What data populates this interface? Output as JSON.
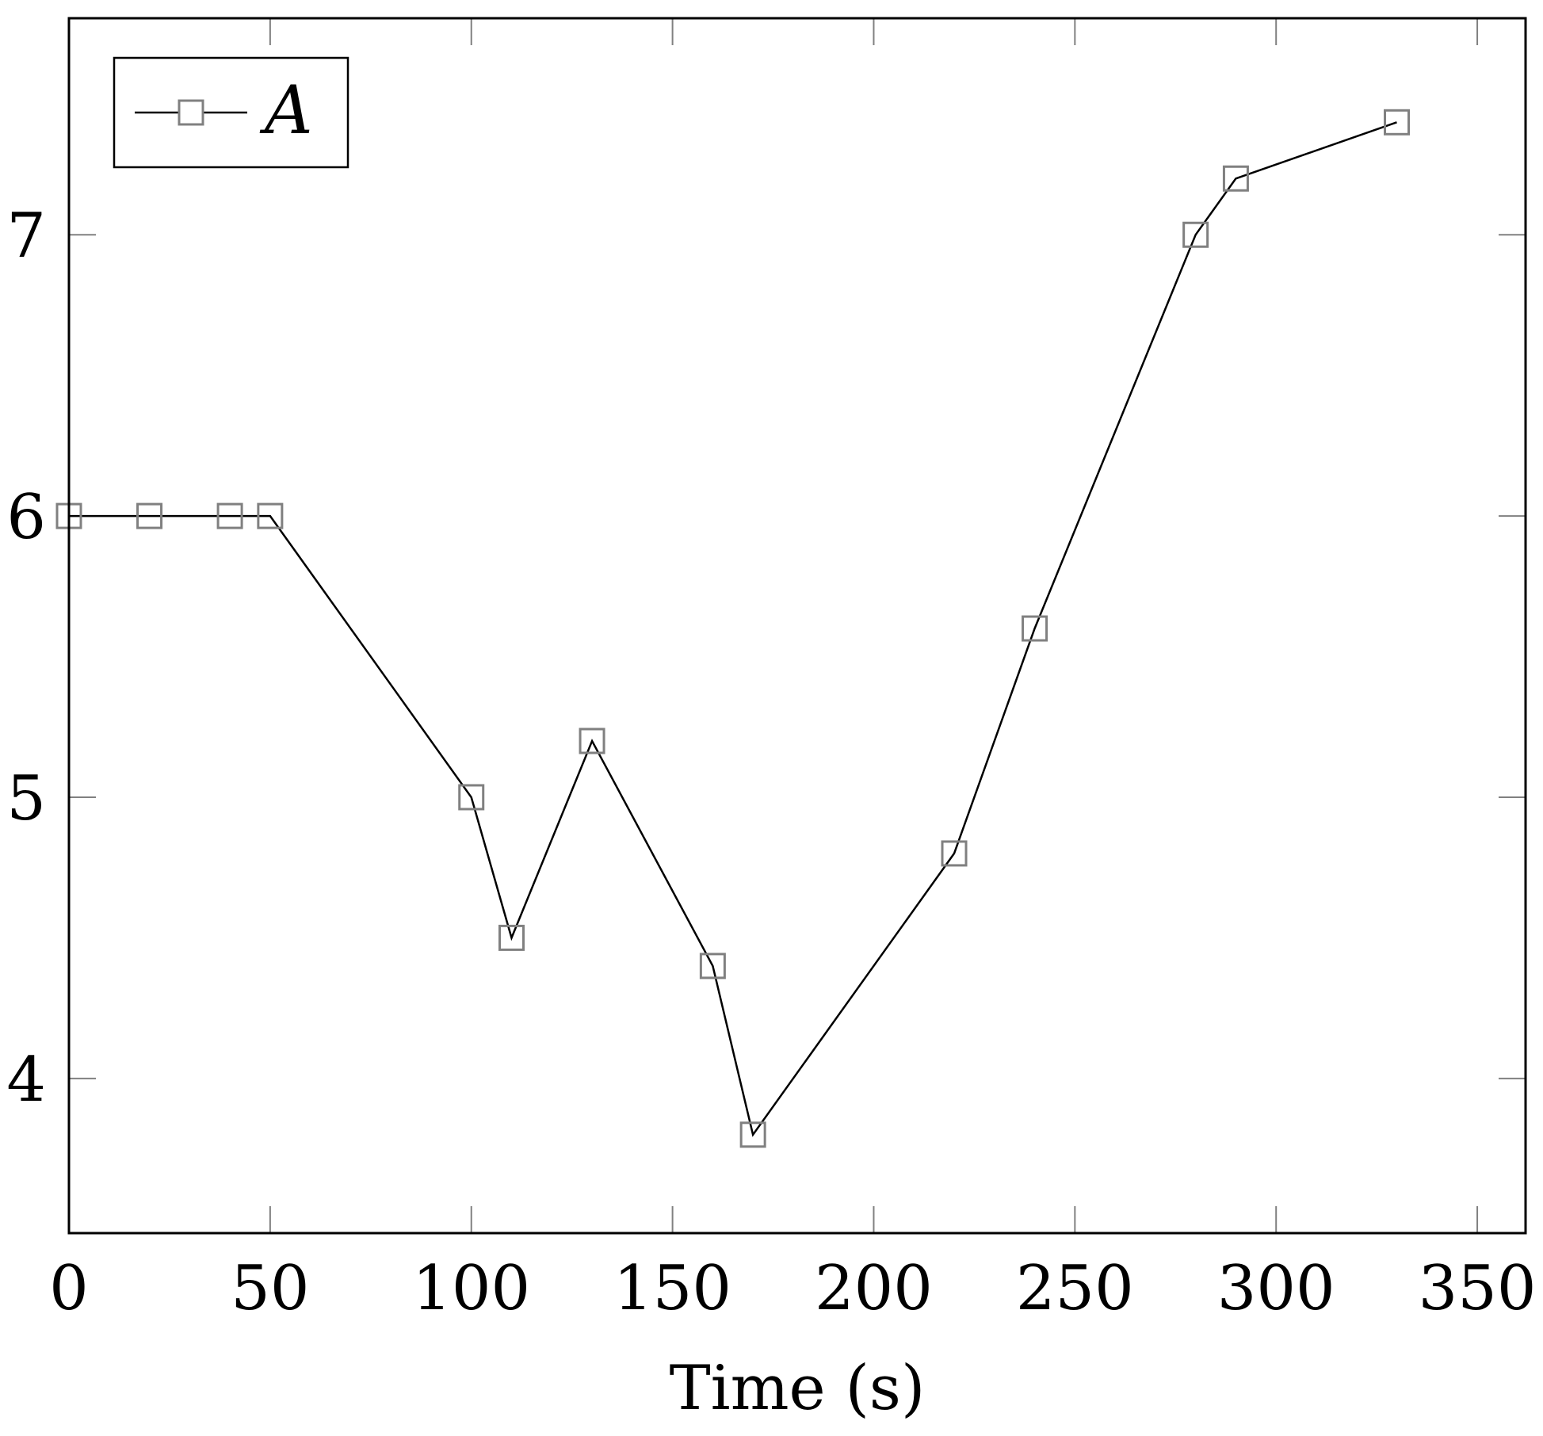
{
  "chart_data": {
    "type": "line",
    "title": "",
    "xlabel": "Time (s)",
    "ylabel": "",
    "xlim": [
      0,
      362
    ],
    "ylim": [
      3.45,
      7.77
    ],
    "xticks": [
      0,
      50,
      100,
      150,
      200,
      250,
      300,
      350
    ],
    "yticks": [
      4,
      5,
      6,
      7
    ],
    "grid": false,
    "legend_position": "top-left",
    "series": [
      {
        "name": "A",
        "color": "#000000",
        "marker": "square",
        "marker_color": "#808080",
        "x": [
          0,
          20,
          40,
          50,
          100,
          110,
          130,
          160,
          170,
          220,
          240,
          280,
          290,
          330
        ],
        "y": [
          6.0,
          6.0,
          6.0,
          6.0,
          5.0,
          4.5,
          5.2,
          4.4,
          3.8,
          4.8,
          5.6,
          7.0,
          7.2,
          7.4
        ]
      }
    ]
  }
}
